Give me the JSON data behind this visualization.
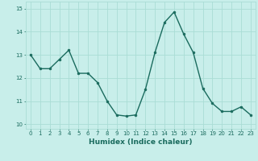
{
  "x": [
    0,
    1,
    2,
    3,
    4,
    5,
    6,
    7,
    8,
    9,
    10,
    11,
    12,
    13,
    14,
    15,
    16,
    17,
    18,
    19,
    20,
    21,
    22,
    23
  ],
  "y": [
    13.0,
    12.4,
    12.4,
    12.8,
    13.2,
    12.2,
    12.2,
    11.8,
    11.0,
    10.4,
    10.35,
    10.4,
    11.5,
    13.1,
    14.4,
    14.85,
    13.9,
    13.1,
    11.55,
    10.9,
    10.55,
    10.55,
    10.75,
    10.4
  ],
  "xlabel": "Humidex (Indice chaleur)",
  "xlim": [
    -0.5,
    23.5
  ],
  "ylim": [
    9.8,
    15.3
  ],
  "yticks": [
    10,
    11,
    12,
    13,
    14,
    15
  ],
  "xticks": [
    0,
    1,
    2,
    3,
    4,
    5,
    6,
    7,
    8,
    9,
    10,
    11,
    12,
    13,
    14,
    15,
    16,
    17,
    18,
    19,
    20,
    21,
    22,
    23
  ],
  "line_color": "#1a6b5e",
  "bg_color": "#c8eeea",
  "grid_color": "#aaddd5",
  "marker_size": 2.0,
  "line_width": 1.0,
  "tick_fontsize": 5.0,
  "xlabel_fontsize": 6.5
}
